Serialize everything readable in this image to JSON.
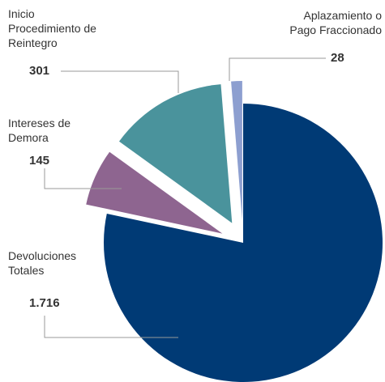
{
  "chart_data": {
    "type": "pie",
    "categories": [
      "Devoluciones Totales",
      "Intereses de Demora",
      "Inicio Procedimiento de Reintegro",
      "Aplazamiento o Pago Fraccionado"
    ],
    "values": [
      1716,
      145,
      301,
      28
    ],
    "value_labels": [
      "1.716",
      "145",
      "301",
      "28"
    ],
    "colors": [
      "#003a75",
      "#8e6590",
      "#4a939c",
      "#8d9fd0"
    ]
  }
}
